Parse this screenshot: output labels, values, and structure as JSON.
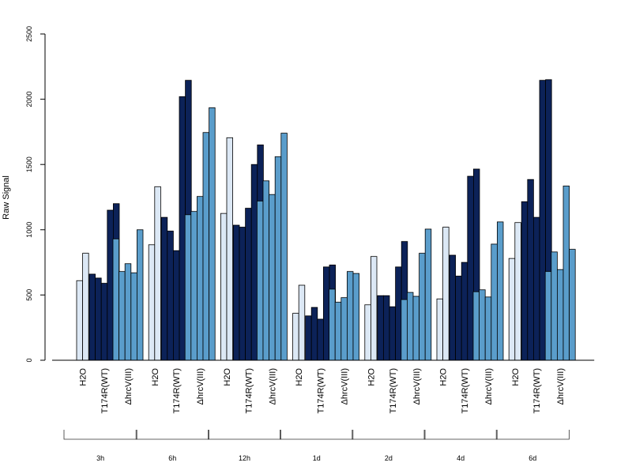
{
  "chart_data": {
    "type": "bar",
    "title": "",
    "xlabel": "",
    "ylabel": "Raw Signal",
    "ylim": [
      0,
      2500
    ],
    "yticks": [
      0,
      500,
      1000,
      1500,
      2000,
      2500
    ],
    "grid": false,
    "legend": "none",
    "condition_colors": {
      "H2O": "#dce8f5",
      "T174R(WT)": "#0c2258",
      "ΔhrcV(III)": "#5a9dcb"
    },
    "groups": [
      {
        "time": "3h",
        "conditions": [
          {
            "label": "H2O",
            "values": [
              610,
              820
            ]
          },
          {
            "label": "T174R(WT)",
            "values": [
              660,
              630,
              590,
              1150,
              1200
            ]
          },
          {
            "label": "ΔhrcV(III)",
            "values": [
              930,
              680,
              740,
              670,
              1000
            ]
          }
        ]
      },
      {
        "time": "6h",
        "conditions": [
          {
            "label": "H2O",
            "values": [
              885,
              1330
            ]
          },
          {
            "label": "T174R(WT)",
            "values": [
              1095,
              990,
              840,
              2020,
              2145
            ]
          },
          {
            "label": "ΔhrcV(III)",
            "values": [
              1115,
              1140,
              1255,
              1745,
              1935
            ]
          }
        ]
      },
      {
        "time": "12h",
        "conditions": [
          {
            "label": "H2O",
            "values": [
              1125,
              1705
            ]
          },
          {
            "label": "T174R(WT)",
            "values": [
              1035,
              1020,
              1165,
              1500,
              1650
            ]
          },
          {
            "label": "ΔhrcV(III)",
            "values": [
              1220,
              1375,
              1270,
              1560,
              1740
            ]
          }
        ]
      },
      {
        "time": "1d",
        "conditions": [
          {
            "label": "H2O",
            "values": [
              360,
              575
            ]
          },
          {
            "label": "T174R(WT)",
            "values": [
              340,
              405,
              315,
              715,
              730
            ]
          },
          {
            "label": "ΔhrcV(III)",
            "values": [
              545,
              445,
              480,
              680,
              665
            ]
          }
        ]
      },
      {
        "time": "2d",
        "conditions": [
          {
            "label": "H2O",
            "values": [
              425,
              795
            ]
          },
          {
            "label": "T174R(WT)",
            "values": [
              495,
              495,
              410,
              715,
              910
            ]
          },
          {
            "label": "ΔhrcV(III)",
            "values": [
              465,
              520,
              490,
              820,
              1005
            ]
          }
        ]
      },
      {
        "time": "4d",
        "conditions": [
          {
            "label": "H2O",
            "values": [
              470,
              1020
            ]
          },
          {
            "label": "T174R(WT)",
            "values": [
              805,
              645,
              750,
              1410,
              1465
            ]
          },
          {
            "label": "ΔhrcV(III)",
            "values": [
              525,
              540,
              485,
              890,
              1060
            ]
          }
        ]
      },
      {
        "time": "6d",
        "conditions": [
          {
            "label": "H2O",
            "values": [
              780,
              1055
            ]
          },
          {
            "label": "T174R(WT)",
            "values": [
              1215,
              1385,
              1095,
              2145,
              2150
            ]
          },
          {
            "label": "ΔhrcV(III)",
            "values": [
              680,
              830,
              695,
              1335,
              850
            ]
          }
        ]
      }
    ]
  }
}
